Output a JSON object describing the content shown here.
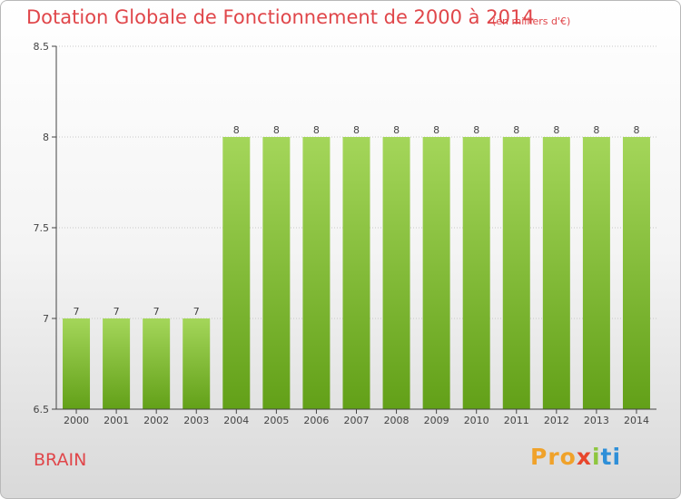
{
  "header": {
    "title": "Dotation Globale de Fonctionnement de 2000 à 2014",
    "unit": "(en milliers d'€)"
  },
  "footer": {
    "place": "BRAIN",
    "logo": [
      "Pro",
      "x",
      "i",
      "ti"
    ]
  },
  "colors": {
    "title": "#e0464a",
    "bar_light": "#a4d65a",
    "bar_dark": "#62a018",
    "axis": "#444444",
    "grid": "#c8c8c8"
  },
  "chart_data": {
    "type": "bar",
    "title": "Dotation Globale de Fonctionnement de 2000 à 2014",
    "categories": [
      "2000",
      "2001",
      "2002",
      "2003",
      "2004",
      "2005",
      "2006",
      "2007",
      "2008",
      "2009",
      "2010",
      "2011",
      "2012",
      "2013",
      "2014"
    ],
    "values": [
      7,
      7,
      7,
      7,
      8,
      8,
      8,
      8,
      8,
      8,
      8,
      8,
      8,
      8,
      8
    ],
    "ylim": [
      6.5,
      8.5
    ],
    "yticks": [
      "6.5",
      "7",
      "7.5",
      "8",
      "8.5"
    ],
    "grid": true,
    "xlabel": "",
    "ylabel": ""
  }
}
